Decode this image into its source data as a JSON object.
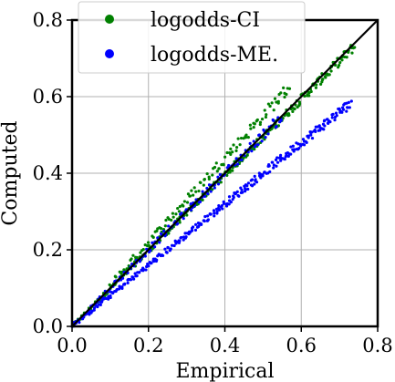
{
  "chart_data": {
    "type": "scatter",
    "xlabel": "Empirical",
    "ylabel": "Computed",
    "xlim": [
      0.0,
      0.8
    ],
    "ylim": [
      0.0,
      0.8
    ],
    "x_ticks": [
      "0.0",
      "0.2",
      "0.4",
      "0.6",
      "0.8"
    ],
    "y_ticks": [
      "0.0",
      "0.2",
      "0.4",
      "0.6",
      "0.8"
    ],
    "grid": true,
    "legend_position": "top-left",
    "diagonal": {
      "from": [
        0.0,
        0.0
      ],
      "to": [
        0.8,
        0.8
      ],
      "color": "#000000"
    },
    "series": [
      {
        "name": "logodds-CI",
        "color": "#008000",
        "bands": [
          {
            "x_range": [
              0.0,
              0.74
            ],
            "slope": 0.99,
            "spread": 0.012,
            "count": 320
          },
          {
            "x_range": [
              0.1,
              0.57
            ],
            "slope": 1.1,
            "spread": 0.018,
            "count": 120
          }
        ]
      },
      {
        "name": "logodds-ME.",
        "color": "#0000ff",
        "bands": [
          {
            "x_range": [
              0.0,
              0.73
            ],
            "slope": 0.8,
            "spread": 0.012,
            "count": 300
          },
          {
            "x_range": [
              0.0,
              0.55
            ],
            "slope": 1.0,
            "spread": 0.015,
            "count": 140
          }
        ]
      }
    ]
  }
}
